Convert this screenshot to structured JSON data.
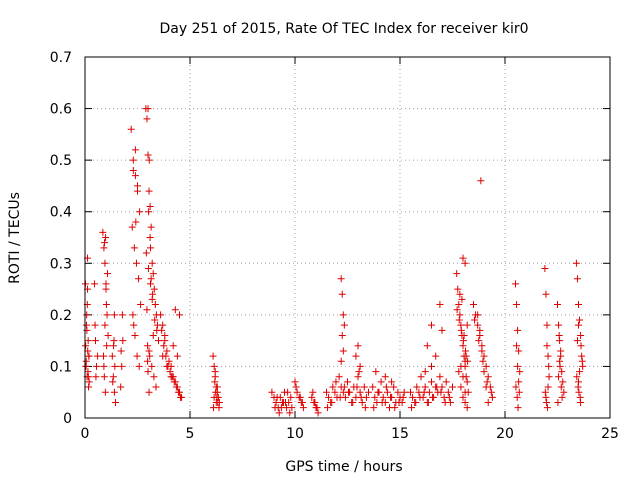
{
  "chart_data": {
    "type": "scatter",
    "title": "Day 251 of 2015, Rate Of TEC Index for receiver kir0",
    "xlabel": "GPS time / hours",
    "ylabel": "ROTI / TECUs",
    "xlim": [
      0,
      25
    ],
    "ylim": [
      0,
      0.7
    ],
    "xticks": [
      0,
      5,
      10,
      15,
      20,
      25
    ],
    "xtick_labels": [
      "0",
      "5",
      "10",
      "15",
      "20",
      "25"
    ],
    "yticks": [
      0,
      0.1,
      0.2,
      0.3,
      0.4,
      0.5,
      0.6,
      0.7
    ],
    "ytick_labels": [
      "0",
      "0.1",
      "0.2",
      "0.3",
      "0.4",
      "0.5",
      "0.6",
      "0.7"
    ],
    "grid": true,
    "marker": "+",
    "color": "#dd0000",
    "series": [
      {
        "name": "kir0",
        "x": [
          0.02,
          0.05,
          0.08,
          0.1,
          0.12,
          0.15,
          0.18,
          0.2,
          0.03,
          0.07,
          0.11,
          0.14,
          0.17,
          0.06,
          0.09,
          0.13,
          0.16,
          0.04,
          0.19,
          0.12,
          0.45,
          0.5,
          0.55,
          0.6,
          0.48,
          0.52,
          0.85,
          0.9,
          0.95,
          1.0,
          1.05,
          1.1,
          0.88,
          0.92,
          0.97,
          1.02,
          1.07,
          0.93,
          0.98,
          1.03,
          0.9,
          0.95,
          1.0,
          1.3,
          1.35,
          1.4,
          1.45,
          1.32,
          1.38,
          1.42,
          1.36,
          1.4,
          1.7,
          1.75,
          1.8,
          1.72,
          1.78,
          2.2,
          2.3,
          2.4,
          2.5,
          2.6,
          2.25,
          2.35,
          2.45,
          2.55,
          2.65,
          2.28,
          2.38,
          2.48,
          2.58,
          2.3,
          2.4,
          2.5,
          2.42,
          2.32,
          2.9,
          2.95,
          3.0,
          3.05,
          3.1,
          3.15,
          3.2,
          3.25,
          3.3,
          3.35,
          3.4,
          3.45,
          3.5,
          2.92,
          3.02,
          3.12,
          3.22,
          3.32,
          3.42,
          2.98,
          3.08,
          3.18,
          3.28,
          3.38,
          3.0,
          3.1,
          3.03,
          3.06,
          3.15,
          3.2,
          3.25,
          3.05,
          2.98,
          3.0,
          3.05,
          2.95,
          3.12,
          3.6,
          3.7,
          3.8,
          3.9,
          4.0,
          4.1,
          4.2,
          4.3,
          4.4,
          4.5,
          4.6,
          3.65,
          3.75,
          3.85,
          3.95,
          4.05,
          4.15,
          4.25,
          4.35,
          4.45,
          4.55,
          3.7,
          3.9,
          4.1,
          4.3,
          4.5,
          3.8,
          4.2,
          4.4,
          6.1,
          6.15,
          6.2,
          6.25,
          6.3,
          6.35,
          6.4,
          6.12,
          6.18,
          6.22,
          6.28,
          6.32,
          6.38,
          6.2,
          6.3,
          6.25,
          6.15,
          8.9,
          9.0,
          9.1,
          9.2,
          9.3,
          9.4,
          9.5,
          9.6,
          9.7,
          9.8,
          9.05,
          9.25,
          9.45,
          9.65,
          9.85,
          9.15,
          9.35,
          9.55,
          9.75,
          10.0,
          10.1,
          10.2,
          10.3,
          10.4,
          10.05,
          10.25,
          10.35,
          10.8,
          10.9,
          11.0,
          11.1,
          10.85,
          10.95,
          11.05,
          11.5,
          11.6,
          11.7,
          11.8,
          11.9,
          12.0,
          12.1,
          12.2,
          12.3,
          12.4,
          12.5,
          12.6,
          12.7,
          12.8,
          12.9,
          13.0,
          13.1,
          13.2,
          13.3,
          13.4,
          13.5,
          11.55,
          11.75,
          11.95,
          12.15,
          12.35,
          12.55,
          12.75,
          12.95,
          13.15,
          13.35,
          12.2,
          12.25,
          12.3,
          12.35,
          12.25,
          12.3,
          12.2,
          12.9,
          13.0,
          13.1,
          13.05,
          13.7,
          13.8,
          13.9,
          14.0,
          14.1,
          14.2,
          14.3,
          14.4,
          14.5,
          14.6,
          14.7,
          14.8,
          14.9,
          15.0,
          15.1,
          15.2,
          13.75,
          13.95,
          14.15,
          14.35,
          14.55,
          14.75,
          14.95,
          15.15,
          13.85,
          14.3,
          14.6,
          15.5,
          15.6,
          15.7,
          15.8,
          15.9,
          16.0,
          16.1,
          16.2,
          16.3,
          16.4,
          16.5,
          16.6,
          16.7,
          16.8,
          16.9,
          17.0,
          17.1,
          17.2,
          17.3,
          17.4,
          17.5,
          15.55,
          15.75,
          15.95,
          16.15,
          16.35,
          16.55,
          16.75,
          16.95,
          17.15,
          17.35,
          16.3,
          16.5,
          16.7,
          16.9,
          16.5,
          17.0,
          16.2,
          17.7,
          17.75,
          17.8,
          17.85,
          17.9,
          17.95,
          18.0,
          18.05,
          18.1,
          18.15,
          18.2,
          18.25,
          17.72,
          17.82,
          17.92,
          18.02,
          18.12,
          18.22,
          17.8,
          17.9,
          18.0,
          18.1,
          18.2,
          18.0,
          18.1,
          17.95,
          18.05,
          18.15,
          17.9,
          18.0,
          18.1,
          17.85,
          18.2,
          18.1,
          18.5,
          18.6,
          18.7,
          18.8,
          18.9,
          19.0,
          19.1,
          19.2,
          19.3,
          19.4,
          18.55,
          18.75,
          18.95,
          19.15,
          19.35,
          18.7,
          18.8,
          18.9,
          19.0,
          19.1,
          18.85,
          19.2,
          20.5,
          20.55,
          20.6,
          20.65,
          20.7,
          20.52,
          20.58,
          20.62,
          20.68,
          20.6,
          20.55,
          20.65,
          21.9,
          21.95,
          22.0,
          22.05,
          22.1,
          21.92,
          21.98,
          22.02,
          22.08,
          22.05,
          22.0,
          21.95,
          22.5,
          22.55,
          22.6,
          22.65,
          22.7,
          22.75,
          22.8,
          22.52,
          22.58,
          22.62,
          22.68,
          22.72,
          22.6,
          22.65,
          22.55,
          23.4,
          23.45,
          23.5,
          23.55,
          23.6,
          23.65,
          23.7,
          23.42,
          23.48,
          23.52,
          23.58,
          23.62,
          23.68,
          23.5,
          23.55,
          23.6,
          23.5,
          23.45
        ],
        "y": [
          0.26,
          0.1,
          0.2,
          0.08,
          0.31,
          0.15,
          0.12,
          0.07,
          0.14,
          0.18,
          0.22,
          0.09,
          0.06,
          0.11,
          0.17,
          0.13,
          0.08,
          0.1,
          0.12,
          0.25,
          0.26,
          0.15,
          0.1,
          0.12,
          0.18,
          0.08,
          0.36,
          0.33,
          0.3,
          0.25,
          0.2,
          0.16,
          0.12,
          0.08,
          0.05,
          0.22,
          0.28,
          0.34,
          0.35,
          0.14,
          0.1,
          0.18,
          0.26,
          0.12,
          0.08,
          0.05,
          0.03,
          0.07,
          0.15,
          0.1,
          0.14,
          0.2,
          0.06,
          0.1,
          0.15,
          0.13,
          0.2,
          0.56,
          0.5,
          0.47,
          0.44,
          0.4,
          0.37,
          0.33,
          0.3,
          0.27,
          0.22,
          0.2,
          0.16,
          0.12,
          0.1,
          0.48,
          0.52,
          0.45,
          0.38,
          0.18,
          0.6,
          0.58,
          0.51,
          0.44,
          0.41,
          0.37,
          0.3,
          0.28,
          0.25,
          0.22,
          0.2,
          0.18,
          0.15,
          0.32,
          0.29,
          0.26,
          0.24,
          0.19,
          0.17,
          0.14,
          0.12,
          0.1,
          0.08,
          0.06,
          0.6,
          0.35,
          0.4,
          0.5,
          0.27,
          0.23,
          0.16,
          0.13,
          0.11,
          0.09,
          0.05,
          0.21,
          0.33,
          0.2,
          0.18,
          0.15,
          0.13,
          0.11,
          0.1,
          0.08,
          0.07,
          0.06,
          0.05,
          0.04,
          0.17,
          0.14,
          0.12,
          0.1,
          0.09,
          0.08,
          0.07,
          0.06,
          0.05,
          0.04,
          0.12,
          0.1,
          0.08,
          0.21,
          0.2,
          0.16,
          0.14,
          0.12,
          0.12,
          0.1,
          0.08,
          0.06,
          0.05,
          0.04,
          0.03,
          0.02,
          0.07,
          0.05,
          0.04,
          0.03,
          0.02,
          0.09,
          0.06,
          0.03,
          0.04,
          0.05,
          0.04,
          0.03,
          0.02,
          0.04,
          0.03,
          0.05,
          0.02,
          0.03,
          0.04,
          0.02,
          0.01,
          0.03,
          0.05,
          0.02,
          0.04,
          0.02,
          0.03,
          0.01,
          0.07,
          0.05,
          0.04,
          0.03,
          0.02,
          0.06,
          0.04,
          0.03,
          0.04,
          0.03,
          0.02,
          0.01,
          0.05,
          0.03,
          0.02,
          0.05,
          0.04,
          0.03,
          0.06,
          0.05,
          0.04,
          0.08,
          0.06,
          0.05,
          0.04,
          0.07,
          0.05,
          0.03,
          0.06,
          0.04,
          0.08,
          0.05,
          0.03,
          0.06,
          0.04,
          0.05,
          0.02,
          0.03,
          0.07,
          0.04,
          0.06,
          0.05,
          0.03,
          0.06,
          0.04,
          0.02,
          0.27,
          0.24,
          0.2,
          0.18,
          0.16,
          0.13,
          0.11,
          0.12,
          0.14,
          0.1,
          0.09,
          0.06,
          0.04,
          0.03,
          0.05,
          0.07,
          0.04,
          0.03,
          0.05,
          0.02,
          0.04,
          0.06,
          0.03,
          0.05,
          0.04,
          0.03,
          0.05,
          0.02,
          0.05,
          0.03,
          0.06,
          0.04,
          0.02,
          0.03,
          0.04,
          0.09,
          0.08,
          0.07,
          0.05,
          0.04,
          0.03,
          0.06,
          0.05,
          0.08,
          0.04,
          0.06,
          0.03,
          0.05,
          0.07,
          0.04,
          0.06,
          0.05,
          0.08,
          0.06,
          0.04,
          0.07,
          0.05,
          0.03,
          0.06,
          0.02,
          0.03,
          0.04,
          0.05,
          0.03,
          0.04,
          0.06,
          0.05,
          0.03,
          0.04,
          0.14,
          0.18,
          0.12,
          0.22,
          0.1,
          0.17,
          0.09,
          0.28,
          0.25,
          0.22,
          0.2,
          0.18,
          0.16,
          0.14,
          0.12,
          0.1,
          0.08,
          0.07,
          0.05,
          0.21,
          0.19,
          0.17,
          0.15,
          0.13,
          0.11,
          0.09,
          0.06,
          0.04,
          0.03,
          0.02,
          0.31,
          0.3,
          0.23,
          0.16,
          0.12,
          0.1,
          0.08,
          0.05,
          0.24,
          0.18,
          0.11,
          0.22,
          0.2,
          0.18,
          0.16,
          0.14,
          0.12,
          0.1,
          0.08,
          0.06,
          0.04,
          0.19,
          0.15,
          0.11,
          0.07,
          0.05,
          0.2,
          0.17,
          0.13,
          0.09,
          0.06,
          0.46,
          0.03,
          0.26,
          0.22,
          0.17,
          0.13,
          0.09,
          0.06,
          0.04,
          0.02,
          0.05,
          0.1,
          0.14,
          0.07,
          0.29,
          0.24,
          0.18,
          0.12,
          0.08,
          0.05,
          0.03,
          0.02,
          0.1,
          0.06,
          0.14,
          0.04,
          0.22,
          0.18,
          0.15,
          0.12,
          0.09,
          0.07,
          0.05,
          0.03,
          0.16,
          0.1,
          0.06,
          0.04,
          0.11,
          0.13,
          0.08,
          0.3,
          0.27,
          0.22,
          0.19,
          0.16,
          0.12,
          0.1,
          0.08,
          0.06,
          0.05,
          0.04,
          0.14,
          0.11,
          0.07,
          0.09,
          0.03,
          0.18,
          0.15
        ]
      }
    ]
  }
}
